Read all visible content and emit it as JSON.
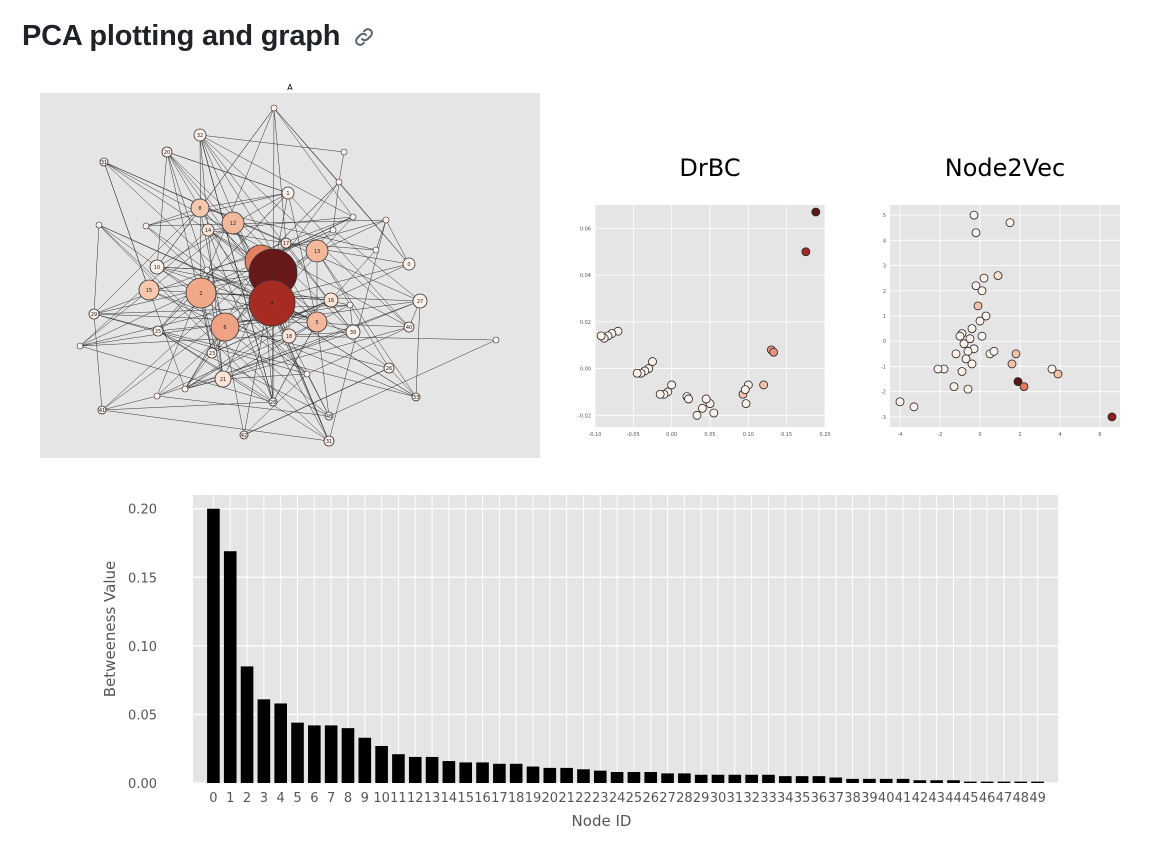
{
  "heading": {
    "title": "PCA plotting and graph",
    "link_icon": "link-icon"
  },
  "graph_panel": {
    "marker": "A",
    "bg_color": "#e5e5e5",
    "nodes": [
      {
        "id": "32",
        "r": 6,
        "c": "#fdf1ea"
      },
      {
        "id": "20",
        "r": 5,
        "c": "#fdf1ea"
      },
      {
        "id": "31",
        "r": 4,
        "c": "#fdf1ea"
      },
      {
        "id": "1",
        "r": 6,
        "c": "#fdf1ea"
      },
      {
        "id": "8",
        "r": 9,
        "c": "#f6c9ae"
      },
      {
        "id": "12",
        "r": 11,
        "c": "#f3b89b"
      },
      {
        "id": "14",
        "r": 6,
        "c": "#fbe4d6"
      },
      {
        "id": "17",
        "r": 5,
        "c": "#fbe4d6"
      },
      {
        "id": "13",
        "r": 11,
        "c": "#f3b89b"
      },
      {
        "id": "10",
        "r": 7,
        "c": "#fdf1ea"
      },
      {
        "id": "15",
        "r": 10,
        "c": "#f6c9ae"
      },
      {
        "id": "2",
        "r": 15,
        "c": "#f0a888"
      },
      {
        "id": "7",
        "r": 16,
        "c": "#e3805f"
      },
      {
        "id": "0",
        "r": 24,
        "c": "#671919"
      },
      {
        "id": "4",
        "r": 23,
        "c": "#a62b22"
      },
      {
        "id": "16",
        "r": 7,
        "c": "#fbe4d6"
      },
      {
        "id": "27",
        "r": 7,
        "c": "#fdf1ea"
      },
      {
        "id": "6",
        "r": 14,
        "c": "#eea283"
      },
      {
        "id": "5",
        "r": 10,
        "c": "#f3b89b"
      },
      {
        "id": "18",
        "r": 7,
        "c": "#fbe4d6"
      },
      {
        "id": "39",
        "r": 7,
        "c": "#fdf1ea"
      },
      {
        "id": "40",
        "r": 5,
        "c": "#fdf1ea"
      },
      {
        "id": "0b",
        "label": "0",
        "r": 6,
        "c": "#fdf1ea"
      },
      {
        "id": "21",
        "r": 8,
        "c": "#fbe4d6"
      },
      {
        "id": "26",
        "r": 5,
        "c": "#fdf1ea"
      },
      {
        "id": "29",
        "r": 5,
        "c": "#fdf1ea"
      },
      {
        "id": "25",
        "r": 5,
        "c": "#fdf1ea"
      },
      {
        "id": "33",
        "r": 4,
        "c": "#fdf1ea"
      },
      {
        "id": "41",
        "r": 4,
        "c": "#fdf1ea"
      },
      {
        "id": "48",
        "r": 4,
        "c": "#fdf1ea"
      },
      {
        "id": "42",
        "r": 4,
        "c": "#fdf1ea"
      },
      {
        "id": "31b",
        "label": "31",
        "r": 5,
        "c": "#fdf1ea"
      },
      {
        "id": "28",
        "r": 4,
        "c": "#fdf1ea"
      },
      {
        "id": "23",
        "r": 5,
        "c": "#fdf1ea"
      }
    ]
  },
  "chart_data": [
    {
      "type": "scatter",
      "title": "DrBC",
      "xlim": [
        -0.1,
        0.2
      ],
      "ylim": [
        -0.025,
        0.07
      ],
      "xticks": [
        "-0.10",
        "-0.05",
        "0.00",
        "0.05",
        "0.10",
        "0.15",
        "0.20"
      ],
      "xtick_values": [
        -0.1,
        -0.05,
        0,
        0.05,
        0.1,
        0.15,
        0.2
      ],
      "yticks": [
        "-0.02",
        "0.00",
        "0.02",
        "0.04",
        "0.06"
      ],
      "ytick_values": [
        -0.02,
        0,
        0.02,
        0.04,
        0.06
      ],
      "points": [
        {
          "x": 0.188,
          "y": 0.067,
          "c": "#5a1a1a"
        },
        {
          "x": 0.175,
          "y": 0.05,
          "c": "#a32a22"
        },
        {
          "x": 0.13,
          "y": 0.008,
          "c": "#e8937a"
        },
        {
          "x": 0.133,
          "y": 0.007,
          "c": "#e8937a"
        },
        {
          "x": 0.12,
          "y": -0.007,
          "c": "#f4c2a8"
        },
        {
          "x": 0.1,
          "y": -0.007,
          "c": "#fdf1ea"
        },
        {
          "x": 0.093,
          "y": -0.011,
          "c": "#f4c2a8"
        },
        {
          "x": 0.096,
          "y": -0.009,
          "c": "#fdf1ea"
        },
        {
          "x": 0.097,
          "y": -0.015,
          "c": "#fdf1ea"
        },
        {
          "x": 0.05,
          "y": -0.015,
          "c": "#fdf1ea"
        },
        {
          "x": 0.045,
          "y": -0.013,
          "c": "#fdf1ea"
        },
        {
          "x": 0.04,
          "y": -0.017,
          "c": "#fdf1ea"
        },
        {
          "x": 0.055,
          "y": -0.019,
          "c": "#fdf1ea"
        },
        {
          "x": 0.033,
          "y": -0.02,
          "c": "#fdf1ea"
        },
        {
          "x": 0.02,
          "y": -0.012,
          "c": "#fdf1ea"
        },
        {
          "x": 0.022,
          "y": -0.013,
          "c": "#fdf1ea"
        },
        {
          "x": 0.0,
          "y": -0.007,
          "c": "#fdf1ea"
        },
        {
          "x": -0.005,
          "y": -0.01,
          "c": "#fdf1ea"
        },
        {
          "x": -0.01,
          "y": -0.011,
          "c": "#fdf1ea"
        },
        {
          "x": -0.015,
          "y": -0.011,
          "c": "#fdf1ea"
        },
        {
          "x": -0.025,
          "y": 0.003,
          "c": "#fdf1ea"
        },
        {
          "x": -0.03,
          "y": 0.0,
          "c": "#fdf1ea"
        },
        {
          "x": -0.035,
          "y": -0.001,
          "c": "#fdf1ea"
        },
        {
          "x": -0.04,
          "y": -0.002,
          "c": "#fdf1ea"
        },
        {
          "x": -0.045,
          "y": -0.002,
          "c": "#fdf1ea"
        },
        {
          "x": -0.07,
          "y": 0.016,
          "c": "#fdf1ea"
        },
        {
          "x": -0.078,
          "y": 0.015,
          "c": "#fdf1ea"
        },
        {
          "x": -0.083,
          "y": 0.014,
          "c": "#fdf1ea"
        },
        {
          "x": -0.088,
          "y": 0.013,
          "c": "#fdf1ea"
        },
        {
          "x": -0.092,
          "y": 0.014,
          "c": "#fdf1ea"
        }
      ]
    },
    {
      "type": "scatter",
      "title": "Node2Vec",
      "xlim": [
        -4.5,
        7
      ],
      "ylim": [
        -3.4,
        5.4
      ],
      "xticks": [
        "-4",
        "-2",
        "0",
        "2",
        "4",
        "6"
      ],
      "xtick_values": [
        -4,
        -2,
        0,
        2,
        4,
        6
      ],
      "yticks": [
        "-3",
        "-2",
        "-1",
        "0",
        "1",
        "2",
        "3",
        "4",
        "5"
      ],
      "ytick_values": [
        -3,
        -2,
        -1,
        0,
        1,
        2,
        3,
        4,
        5
      ],
      "points": [
        {
          "x": 6.6,
          "y": -3.0,
          "c": "#8b1f1f"
        },
        {
          "x": 1.9,
          "y": -1.6,
          "c": "#5a1a1a"
        },
        {
          "x": 2.2,
          "y": -1.8,
          "c": "#e07a5a"
        },
        {
          "x": 3.9,
          "y": -1.3,
          "c": "#f4c2a8"
        },
        {
          "x": 1.8,
          "y": -0.5,
          "c": "#f4c2a8"
        },
        {
          "x": 1.6,
          "y": -0.9,
          "c": "#f4c2a8"
        },
        {
          "x": -0.1,
          "y": 1.4,
          "c": "#f4c2a8"
        },
        {
          "x": 0.9,
          "y": 2.6,
          "c": "#fbe0d0"
        },
        {
          "x": 3.6,
          "y": -1.1,
          "c": "#fdf1ea"
        },
        {
          "x": -0.3,
          "y": 5.0,
          "c": "#fdf1ea"
        },
        {
          "x": 1.5,
          "y": 4.7,
          "c": "#fdf1ea"
        },
        {
          "x": -0.2,
          "y": 4.3,
          "c": "#fdf1ea"
        },
        {
          "x": 0.2,
          "y": 2.5,
          "c": "#fdf1ea"
        },
        {
          "x": -0.2,
          "y": 2.2,
          "c": "#fdf1ea"
        },
        {
          "x": 0.1,
          "y": 2.0,
          "c": "#fdf1ea"
        },
        {
          "x": 0.3,
          "y": 1.0,
          "c": "#fdf1ea"
        },
        {
          "x": 0.0,
          "y": 0.8,
          "c": "#fdf1ea"
        },
        {
          "x": -0.4,
          "y": 0.5,
          "c": "#fdf1ea"
        },
        {
          "x": -0.9,
          "y": 0.3,
          "c": "#fdf1ea"
        },
        {
          "x": -1.0,
          "y": 0.2,
          "c": "#fdf1ea"
        },
        {
          "x": -0.5,
          "y": 0.1,
          "c": "#fdf1ea"
        },
        {
          "x": 0.1,
          "y": 0.2,
          "c": "#fdf1ea"
        },
        {
          "x": -0.8,
          "y": -0.1,
          "c": "#fdf1ea"
        },
        {
          "x": -0.3,
          "y": -0.3,
          "c": "#fdf1ea"
        },
        {
          "x": -0.6,
          "y": -0.4,
          "c": "#fdf1ea"
        },
        {
          "x": -1.2,
          "y": -0.5,
          "c": "#fdf1ea"
        },
        {
          "x": -0.7,
          "y": -0.7,
          "c": "#fdf1ea"
        },
        {
          "x": -0.4,
          "y": -0.9,
          "c": "#fdf1ea"
        },
        {
          "x": 0.5,
          "y": -0.5,
          "c": "#fdf1ea"
        },
        {
          "x": 0.7,
          "y": -0.4,
          "c": "#fdf1ea"
        },
        {
          "x": -1.8,
          "y": -1.1,
          "c": "#fdf1ea"
        },
        {
          "x": -2.1,
          "y": -1.1,
          "c": "#fdf1ea"
        },
        {
          "x": -0.9,
          "y": -1.2,
          "c": "#fdf1ea"
        },
        {
          "x": -1.3,
          "y": -1.8,
          "c": "#fdf1ea"
        },
        {
          "x": -0.6,
          "y": -1.9,
          "c": "#fdf1ea"
        },
        {
          "x": -4.0,
          "y": -2.4,
          "c": "#fdf1ea"
        },
        {
          "x": -3.3,
          "y": -2.6,
          "c": "#fdf1ea"
        }
      ]
    },
    {
      "type": "bar",
      "xlabel": "Node ID",
      "ylabel": "Betweeness Value",
      "ylim": [
        0,
        0.21
      ],
      "yticks": [
        "0.00",
        "0.05",
        "0.10",
        "0.15",
        "0.20"
      ],
      "ytick_values": [
        0,
        0.05,
        0.1,
        0.15,
        0.2
      ],
      "bar_color": "#000000",
      "bg_color": "#e5e5e5",
      "categories": [
        "0",
        "1",
        "2",
        "3",
        "4",
        "5",
        "6",
        "7",
        "8",
        "9",
        "10",
        "11",
        "12",
        "13",
        "14",
        "15",
        "16",
        "17",
        "18",
        "19",
        "20",
        "21",
        "22",
        "23",
        "24",
        "25",
        "26",
        "27",
        "28",
        "29",
        "30",
        "31",
        "32",
        "33",
        "34",
        "35",
        "36",
        "37",
        "38",
        "39",
        "40",
        "41",
        "42",
        "43",
        "44",
        "45",
        "46",
        "47",
        "48",
        "49"
      ],
      "values": [
        0.2,
        0.169,
        0.085,
        0.061,
        0.058,
        0.044,
        0.042,
        0.042,
        0.04,
        0.033,
        0.027,
        0.021,
        0.019,
        0.019,
        0.016,
        0.015,
        0.015,
        0.014,
        0.014,
        0.012,
        0.011,
        0.011,
        0.01,
        0.009,
        0.008,
        0.008,
        0.008,
        0.007,
        0.007,
        0.006,
        0.006,
        0.006,
        0.006,
        0.006,
        0.005,
        0.005,
        0.005,
        0.004,
        0.003,
        0.003,
        0.003,
        0.003,
        0.002,
        0.002,
        0.002,
        0.001,
        0.001,
        0.001,
        0.001,
        0.001
      ]
    }
  ]
}
